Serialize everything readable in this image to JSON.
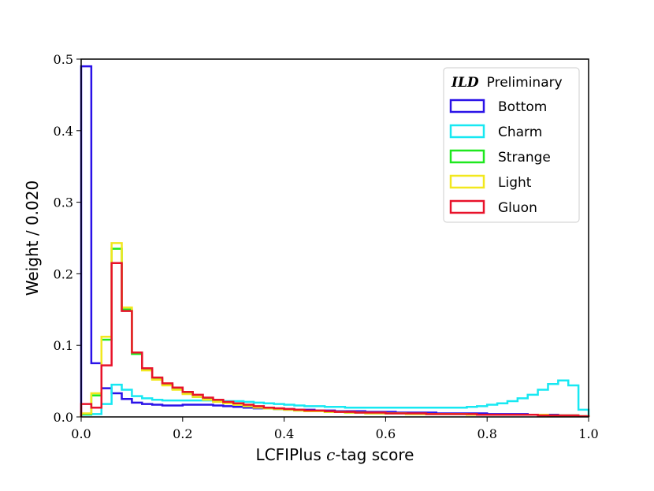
{
  "chart_data": {
    "type": "histogram-step",
    "title": "",
    "xlabel_pre": "LCFIPlus ",
    "xlabel_math": "c",
    "xlabel_post": "-tag score",
    "ylabel": "Weight / 0.020",
    "xlim": [
      0.0,
      1.0
    ],
    "ylim": [
      0.0,
      0.5
    ],
    "bin_width": 0.02,
    "xticks": [
      "0.0",
      "0.2",
      "0.4",
      "0.6",
      "0.8",
      "1.0"
    ],
    "xtick_values": [
      0.0,
      0.2,
      0.4,
      0.6,
      0.8,
      1.0
    ],
    "yticks": [
      "0.0",
      "0.1",
      "0.2",
      "0.3",
      "0.4",
      "0.5"
    ],
    "ytick_values": [
      0.0,
      0.1,
      0.2,
      0.3,
      0.4,
      0.5
    ],
    "legend": {
      "location": "upper right",
      "title_experiment": "ILD",
      "title_status": "Preliminary"
    },
    "series": [
      {
        "name": "Bottom",
        "color": "#2a12e8",
        "values": [
          0.49,
          0.075,
          0.04,
          0.033,
          0.025,
          0.02,
          0.018,
          0.017,
          0.016,
          0.016,
          0.017,
          0.017,
          0.017,
          0.016,
          0.015,
          0.014,
          0.013,
          0.012,
          0.012,
          0.011,
          0.011,
          0.01,
          0.01,
          0.009,
          0.009,
          0.008,
          0.008,
          0.008,
          0.007,
          0.007,
          0.007,
          0.006,
          0.006,
          0.006,
          0.006,
          0.005,
          0.005,
          0.005,
          0.005,
          0.005,
          0.004,
          0.004,
          0.004,
          0.004,
          0.003,
          0.003,
          0.003,
          0.002,
          0.002,
          0.001
        ]
      },
      {
        "name": "Charm",
        "color": "#17e8f2",
        "values": [
          0.003,
          0.004,
          0.018,
          0.045,
          0.038,
          0.029,
          0.026,
          0.024,
          0.023,
          0.023,
          0.023,
          0.023,
          0.023,
          0.023,
          0.022,
          0.022,
          0.021,
          0.02,
          0.019,
          0.018,
          0.017,
          0.016,
          0.015,
          0.015,
          0.014,
          0.014,
          0.013,
          0.013,
          0.013,
          0.013,
          0.013,
          0.013,
          0.013,
          0.013,
          0.013,
          0.013,
          0.013,
          0.013,
          0.014,
          0.015,
          0.017,
          0.019,
          0.022,
          0.026,
          0.031,
          0.038,
          0.046,
          0.051,
          0.044,
          0.01
        ]
      },
      {
        "name": "Strange",
        "color": "#1ee81e",
        "values": [
          0.004,
          0.03,
          0.108,
          0.235,
          0.15,
          0.088,
          0.066,
          0.053,
          0.045,
          0.039,
          0.033,
          0.028,
          0.025,
          0.022,
          0.019,
          0.017,
          0.015,
          0.013,
          0.012,
          0.011,
          0.01,
          0.009,
          0.008,
          0.008,
          0.007,
          0.007,
          0.006,
          0.006,
          0.005,
          0.005,
          0.005,
          0.005,
          0.004,
          0.004,
          0.004,
          0.004,
          0.004,
          0.004,
          0.003,
          0.003,
          0.003,
          0.003,
          0.003,
          0.003,
          0.003,
          0.003,
          0.002,
          0.002,
          0.002,
          0.001
        ]
      },
      {
        "name": "Light",
        "color": "#f2e81e",
        "values": [
          0.005,
          0.033,
          0.112,
          0.243,
          0.153,
          0.09,
          0.065,
          0.052,
          0.044,
          0.038,
          0.032,
          0.028,
          0.024,
          0.021,
          0.019,
          0.017,
          0.015,
          0.013,
          0.012,
          0.011,
          0.01,
          0.009,
          0.008,
          0.008,
          0.007,
          0.007,
          0.006,
          0.006,
          0.005,
          0.005,
          0.005,
          0.005,
          0.004,
          0.004,
          0.004,
          0.004,
          0.004,
          0.004,
          0.003,
          0.003,
          0.003,
          0.003,
          0.003,
          0.003,
          0.003,
          0.003,
          0.002,
          0.002,
          0.002,
          0.001
        ]
      },
      {
        "name": "Gluon",
        "color": "#e8122a",
        "values": [
          0.018,
          0.013,
          0.072,
          0.215,
          0.148,
          0.09,
          0.068,
          0.055,
          0.047,
          0.041,
          0.035,
          0.031,
          0.027,
          0.024,
          0.021,
          0.019,
          0.017,
          0.015,
          0.013,
          0.012,
          0.011,
          0.01,
          0.009,
          0.009,
          0.008,
          0.007,
          0.007,
          0.006,
          0.006,
          0.006,
          0.005,
          0.005,
          0.005,
          0.005,
          0.004,
          0.004,
          0.004,
          0.004,
          0.004,
          0.003,
          0.003,
          0.003,
          0.003,
          0.003,
          0.003,
          0.002,
          0.002,
          0.002,
          0.002,
          0.001
        ]
      }
    ]
  }
}
